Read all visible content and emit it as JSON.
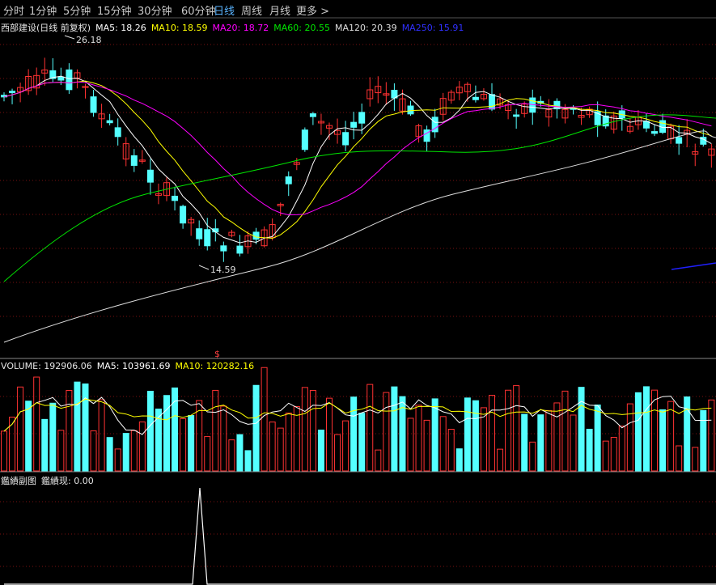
{
  "tabs": [
    "分时",
    "1分钟",
    "5分钟",
    "15分钟",
    "30分钟",
    "60分钟",
    "日线",
    "周线",
    "月线",
    "更多 >"
  ],
  "active_tab": "日线",
  "colors": {
    "up": "#ff3232",
    "down": "#54ffff",
    "ma5": "#ffffff",
    "ma10": "#ffff00",
    "ma20": "#ff00ff",
    "ma60": "#00e600",
    "ma120": "#dddddd",
    "ma250": "#2020ff"
  },
  "price_panel": {
    "stock_title": "西部建设(日线 前复权)",
    "ma5": "MA5: 18.26",
    "ma10": "MA10: 18.59",
    "ma20": "MA20: 18.72",
    "ma60": "MA60: 20.55",
    "ma120": "MA120: 20.39",
    "ma250": "MA250: 15.91",
    "high_label": "26.18",
    "low_label": "14.59",
    "signal_mark": "$"
  },
  "volume_panel": {
    "volume": "VOLUME: 192906.06",
    "ma5": "MA5: 103961.69",
    "ma10": "MA10: 120282.16"
  },
  "indicator_panel": {
    "title": "鑑績副图",
    "value": "鑑績现: 0.00"
  },
  "chart_data": {
    "type": "candlestick",
    "price_range": [
      13.5,
      27.0
    ],
    "ma_values": {
      "MA5": 18.26,
      "MA10": 18.59,
      "MA20": 18.72,
      "MA60": 20.55,
      "MA120": 20.39,
      "MA250": 15.91
    },
    "annotations": {
      "high": 26.18,
      "low": 14.59
    },
    "last_volume": 192906.06
  }
}
